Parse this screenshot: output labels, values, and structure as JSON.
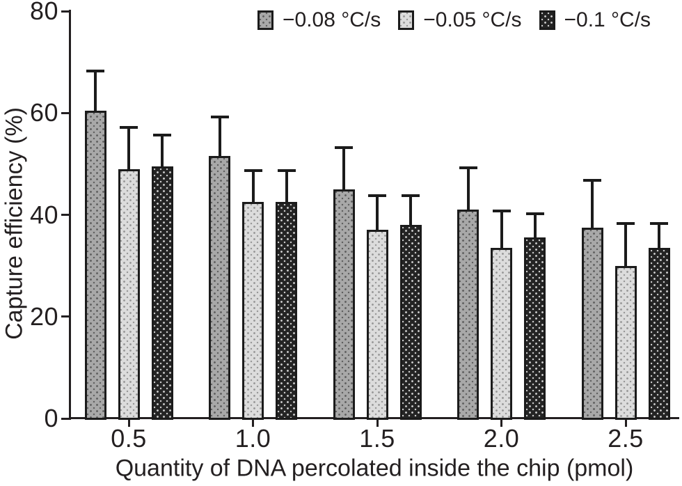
{
  "chart_data": {
    "type": "bar",
    "title": "",
    "xlabel": "Quantity of DNA percolated inside the chip (pmol)",
    "ylabel": "Capture efficiency (%)",
    "categories": [
      "0.5",
      "1.0",
      "1.5",
      "2.0",
      "2.5"
    ],
    "series": [
      {
        "name": "−0.08 °C/s",
        "values": [
          60.5,
          51.5,
          45,
          41,
          37.5
        ],
        "errors": [
          8,
          8,
          8.5,
          8.5,
          9.5
        ],
        "fill": "#a8a8a8",
        "dot": "#5f5f5f"
      },
      {
        "name": "−0.05 °C/s",
        "values": [
          49,
          42.5,
          37,
          33.5,
          30
        ],
        "errors": [
          8.5,
          6.5,
          7,
          7.5,
          8.5
        ],
        "fill": "#dcdcdc",
        "dot": "#989898"
      },
      {
        "name": "−0.1 °C/s",
        "values": [
          49.5,
          42.5,
          38,
          35.5,
          33.5
        ],
        "errors": [
          6.5,
          6.5,
          6,
          5,
          5
        ],
        "fill": "#242424",
        "dot": "#cccccc"
      }
    ],
    "ylim": [
      0,
      80
    ],
    "yticks": [
      "0",
      "20",
      "40",
      "60",
      "80"
    ],
    "grid": false,
    "legend_position": "top",
    "error_bars": true,
    "axis_color": "#231f20",
    "text_color": "#231f20",
    "background_color": "#ffffff"
  }
}
